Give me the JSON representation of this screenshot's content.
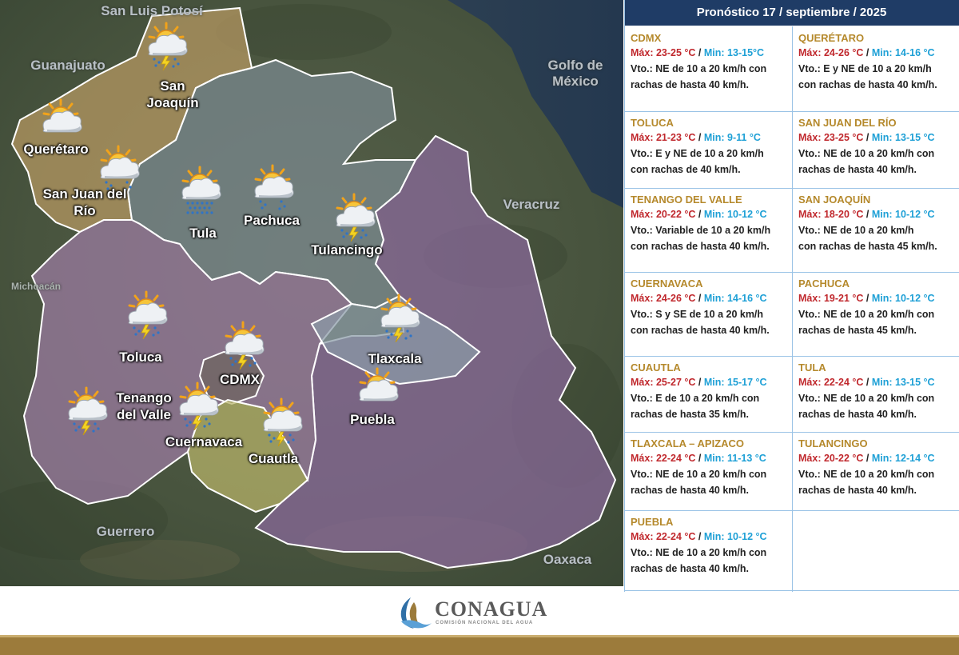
{
  "map": {
    "places": [
      {
        "id": "san-luis-potosi",
        "label": "San Luis Potosí"
      },
      {
        "id": "guanajuato",
        "label": "Guanajuato"
      },
      {
        "id": "golfo",
        "label": "Golfo de México"
      },
      {
        "id": "veracruz",
        "label": "Veracruz"
      },
      {
        "id": "michoacan",
        "label": "Michoacán"
      },
      {
        "id": "guerrero",
        "label": "Guerrero"
      },
      {
        "id": "oaxaca",
        "label": "Oaxaca"
      }
    ],
    "cities": [
      {
        "id": "san-joaquin",
        "label": "San Joaquín",
        "icon": "storm-cloud-icon"
      },
      {
        "id": "queretaro",
        "label": "Querétaro",
        "icon": "sun-cloud-icon"
      },
      {
        "id": "san-juan",
        "label": "San Juan del Río",
        "icon": "sun-cloud-icon"
      },
      {
        "id": "tula",
        "label": "Tula",
        "icon": "sun-rain-icon"
      },
      {
        "id": "pachuca",
        "label": "Pachuca",
        "icon": "sun-cloud-icon"
      },
      {
        "id": "tulancingo",
        "label": "Tulancingo",
        "icon": "storm-cloud-icon"
      },
      {
        "id": "toluca",
        "label": "Toluca",
        "icon": "storm-cloud-icon"
      },
      {
        "id": "cdmx",
        "label": "CDMX",
        "icon": "storm-cloud-icon"
      },
      {
        "id": "tlaxcala",
        "label": "Tlaxcala",
        "icon": "storm-cloud-icon"
      },
      {
        "id": "tenango",
        "label": "Tenango del Valle",
        "icon": "storm-cloud-icon"
      },
      {
        "id": "cuernavaca",
        "label": "Cuernavaca",
        "icon": "storm-cloud-icon"
      },
      {
        "id": "cuautla",
        "label": "Cuautla",
        "icon": "storm-cloud-icon"
      },
      {
        "id": "puebla",
        "label": "Puebla",
        "icon": "sun-cloud-icon"
      }
    ]
  },
  "panel": {
    "title": "Pronóstico 17 / septiembre / 2025",
    "max_prefix": "Máx:",
    "min_prefix": "Min:",
    "separator": " / ",
    "forecasts": [
      {
        "name": "CDMX",
        "max": "23-25 °C",
        "min": "13-15°C",
        "wind1": "Vto.: NE de 10 a 20 km/h con",
        "wind2": "rachas de hasta 40 km/h."
      },
      {
        "name": "QUERÉTARO",
        "max": "24-26 °C",
        "min": "14-16 °C",
        "wind1": "Vto.: E y NE de 10 a 20 km/h",
        "wind2": "con rachas de hasta 40 km/h."
      },
      {
        "name": "TOLUCA",
        "max": "21-23 °C",
        "min": "9-11 °C",
        "wind1": "Vto.: E y NE de 10 a 20 km/h",
        "wind2": "con rachas de 40 km/h."
      },
      {
        "name": "SAN JUAN DEL RÍO",
        "max": "23-25 °C",
        "min": "13-15 °C",
        "wind1": "Vto.: NE de 10 a 20 km/h con",
        "wind2": "rachas de hasta 40 km/h."
      },
      {
        "name": "TENANGO DEL VALLE",
        "max": "20-22 °C",
        "min": "10-12 °C",
        "wind1": "Vto.: Variable de 10 a 20 km/h",
        "wind2": "con rachas de hasta 40 km/h."
      },
      {
        "name": "SAN JOAQUÍN",
        "max": "18-20 °C",
        "min": "10-12 °C",
        "wind1": "Vto.: NE de 10 a 20 km/h",
        "wind2": "con rachas de hasta 45 km/h."
      },
      {
        "name": "CUERNAVACA",
        "max": "24-26 °C",
        "min": "14-16 °C",
        "wind1": "Vto.: S y SE de 10 a 20 km/h",
        "wind2": "con rachas de hasta 40 km/h."
      },
      {
        "name": "PACHUCA",
        "max": "19-21 °C",
        "min": "10-12 °C",
        "wind1": "Vto.: NE de 10 a 20 km/h con",
        "wind2": "rachas de hasta 45 km/h."
      },
      {
        "name": "CUAUTLA",
        "max": "25-27 °C",
        "min": "15-17 °C",
        "wind1": "Vto.: E de 10 a 20 km/h con",
        "wind2": "rachas de hasta 35 km/h."
      },
      {
        "name": "TULA",
        "max": "22-24 °C",
        "min": "13-15 °C",
        "wind1": "Vto.: NE de 10 a 20 km/h con",
        "wind2": "rachas de hasta 40 km/h."
      },
      {
        "name": "TLAXCALA – APIZACO",
        "max": "22-24 °C",
        "min": "11-13 °C",
        "wind1": "Vto.: NE de 10 a 20 km/h con",
        "wind2": "rachas de hasta 40 km/h."
      },
      {
        "name": "TULANCINGO",
        "max": "20-22 °C",
        "min": "12-14 °C",
        "wind1": "Vto.: NE de 10 a 20 km/h con",
        "wind2": "rachas de hasta 40 km/h."
      },
      {
        "name": "PUEBLA",
        "max": "22-24 °C",
        "min": "10-12 °C",
        "wind1": "Vto.: NE de 10 a 20 km/h con",
        "wind2": "rachas de hasta 40 km/h."
      }
    ]
  },
  "footer": {
    "logo_name": "CONAGUA",
    "logo_subtitle": "COMISIÓN NACIONAL DEL AGUA",
    "brand_gold": "#9c7b3b",
    "header_blue": "#1f3c66"
  }
}
